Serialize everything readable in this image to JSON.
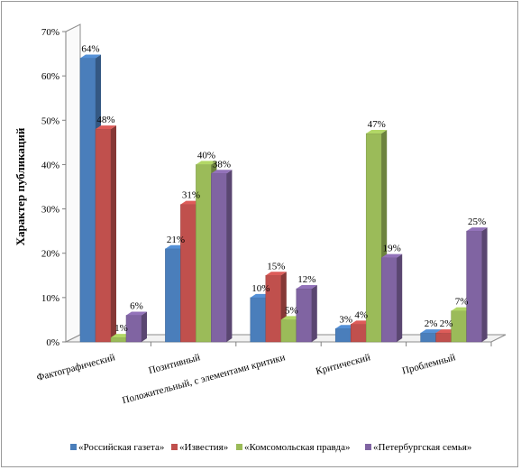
{
  "chart_data": {
    "type": "bar",
    "ylabel": "Характер публикаций",
    "ylim": [
      0,
      70
    ],
    "yticks": [
      "0%",
      "10%",
      "20%",
      "30%",
      "40%",
      "50%",
      "60%",
      "70%"
    ],
    "grid": false,
    "legend_position": "bottom",
    "categories": [
      "Фактографический",
      "Позитивный",
      "Положительный, с элементами критики",
      "Критический",
      "Проблемный"
    ],
    "series": [
      {
        "name": "«Российская газета»",
        "color": "#4a7ebb",
        "values": [
          64,
          21,
          10,
          3,
          2
        ],
        "labels": [
          "64%",
          "21%",
          "10%",
          "3%",
          "2%"
        ]
      },
      {
        "name": "«Известия»",
        "color": "#c0504d",
        "values": [
          48,
          31,
          15,
          4,
          2
        ],
        "labels": [
          "48%",
          "31%",
          "15%",
          "4%",
          "2%"
        ]
      },
      {
        "name": "«Комсомольская правда»",
        "color": "#9bbb59",
        "values": [
          1,
          40,
          5,
          47,
          7
        ],
        "labels": [
          "1%",
          "40%",
          "5%",
          "47%",
          "7%"
        ]
      },
      {
        "name": "«Петербургская семья»",
        "color": "#8064a2",
        "values": [
          6,
          38,
          12,
          19,
          25
        ],
        "labels": [
          "6%",
          "38%",
          "12%",
          "19%",
          "25%"
        ]
      }
    ]
  }
}
